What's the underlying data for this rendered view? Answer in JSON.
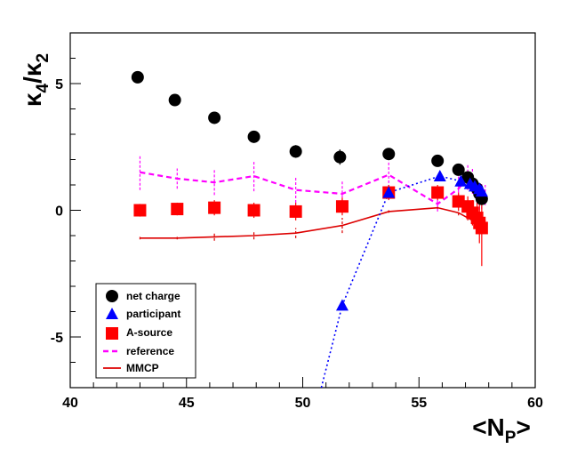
{
  "chart_data": {
    "type": "scatter",
    "xlabel": "<N",
    "xlabel_sub": "P",
    "xlabel_tail": ">",
    "ylabel": "κ",
    "ylabel_sub1": "4",
    "ylabel_sep": "/κ",
    "ylabel_sub2": "2",
    "xlim": [
      40,
      60
    ],
    "ylim": [
      -7,
      7
    ],
    "xticks": [
      {
        "value": 40,
        "label": "40"
      },
      {
        "value": 45,
        "label": "45"
      },
      {
        "value": 50,
        "label": "50"
      },
      {
        "value": 55,
        "label": "55"
      },
      {
        "value": 60,
        "label": "60"
      }
    ],
    "yticks": [
      {
        "value": -5,
        "label": "-5"
      },
      {
        "value": 0,
        "label": "0"
      },
      {
        "value": 5,
        "label": "5"
      }
    ],
    "legend": {
      "position": "bottom-left"
    },
    "series": [
      {
        "name": "net charge",
        "marker": "circle",
        "color": "#000000",
        "x": [
          42.9,
          44.5,
          46.2,
          47.9,
          49.7,
          51.6,
          53.7,
          55.8,
          56.7,
          57.1,
          57.3,
          57.5,
          57.6,
          57.7
        ],
        "y": [
          5.25,
          4.35,
          3.65,
          2.9,
          2.32,
          2.1,
          2.22,
          1.95,
          1.6,
          1.3,
          1.05,
          0.85,
          0.65,
          0.45
        ],
        "err": [
          0.15,
          0.12,
          0.15,
          0.2,
          0.25,
          0.3,
          0.2,
          0.15,
          0.15,
          0.2,
          0.2,
          0.2,
          0.2,
          0.2
        ]
      },
      {
        "name": "participant",
        "marker": "triangle",
        "color": "#0000ff",
        "x": [
          51.7,
          53.7,
          55.9,
          56.8,
          57.2,
          57.4,
          57.6,
          57.7
        ],
        "y": [
          -3.75,
          0.7,
          1.35,
          1.15,
          1.05,
          0.95,
          0.85,
          0.75
        ],
        "err": [
          0.12,
          0.1,
          0.1,
          0.1,
          0.1,
          0.1,
          0.1,
          0.1
        ],
        "line_x": [
          50.8,
          51.7,
          53.7,
          55.9,
          56.8,
          57.2,
          57.4,
          57.6,
          57.7
        ],
        "line_y": [
          -7.0,
          -3.75,
          0.7,
          1.35,
          1.15,
          1.05,
          0.95,
          0.85,
          0.75
        ]
      },
      {
        "name": "A-source",
        "marker": "square",
        "color": "#ff0000",
        "x": [
          43.0,
          44.6,
          46.2,
          47.9,
          49.7,
          51.7,
          53.7,
          55.8,
          56.7,
          57.1,
          57.3,
          57.5,
          57.6,
          57.7
        ],
        "y": [
          0.0,
          0.05,
          0.1,
          0.0,
          -0.05,
          0.15,
          0.7,
          0.7,
          0.35,
          0.15,
          -0.1,
          -0.3,
          -0.5,
          -0.7
        ],
        "err": [
          0.25,
          0.25,
          0.3,
          0.3,
          0.35,
          0.35,
          0.3,
          0.3,
          0.35,
          0.4,
          0.5,
          0.6,
          0.8,
          1.5
        ]
      },
      {
        "name": "reference",
        "line": "dashed",
        "color": "#ff00ff",
        "x": [
          43.0,
          44.6,
          46.2,
          47.9,
          49.7,
          51.7,
          53.7,
          55.8,
          56.7,
          57.1,
          57.3,
          57.5,
          57.6,
          57.7,
          57.85
        ],
        "y": [
          1.5,
          1.25,
          1.1,
          1.35,
          0.8,
          0.65,
          1.4,
          0.25,
          0.85,
          1.3,
          1.15,
          0.55,
          0.35,
          0.55,
          0.6
        ],
        "err": [
          0.7,
          0.4,
          0.5,
          0.6,
          0.5,
          0.5,
          0.5,
          0.3,
          0.5,
          0.5,
          0.5,
          0.5,
          0.5,
          0.5,
          0.4
        ]
      },
      {
        "name": "MMCP",
        "line": "solid",
        "color": "#dd0000",
        "x": [
          43.0,
          44.6,
          46.2,
          47.9,
          49.7,
          51.7,
          53.7,
          55.8,
          56.7,
          57.1,
          57.3,
          57.5,
          57.6,
          57.7,
          57.85
        ],
        "y": [
          -1.1,
          -1.1,
          -1.05,
          -1.0,
          -0.9,
          -0.6,
          -0.05,
          0.1,
          -0.1,
          -0.3,
          -0.4,
          -0.5,
          -0.5,
          -0.45,
          -0.5
        ],
        "err": [
          0.05,
          0.05,
          0.15,
          0.15,
          0.2,
          0.3,
          0.05,
          0.05,
          0.1,
          0.1,
          0.15,
          0.15,
          0.15,
          0.1,
          0.1
        ]
      }
    ]
  }
}
